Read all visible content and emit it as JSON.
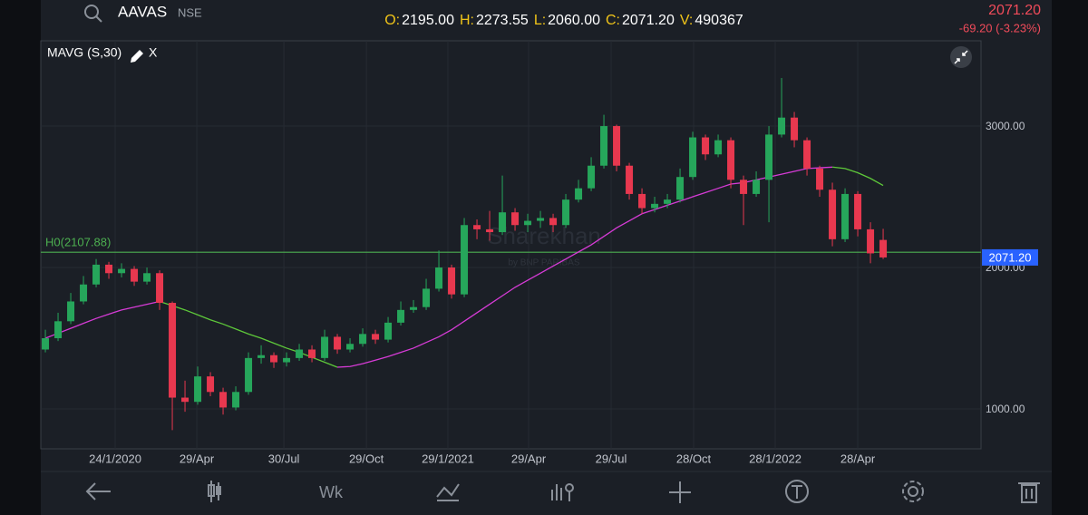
{
  "header": {
    "symbol": "AAVAS",
    "exchange": "NSE",
    "ohlcv": [
      {
        "key": "O:",
        "value": "2195.00"
      },
      {
        "key": "H:",
        "value": "2273.55"
      },
      {
        "key": "L:",
        "value": "2060.00"
      },
      {
        "key": "C:",
        "value": "2071.20"
      },
      {
        "key": "V:",
        "value": "490367"
      }
    ],
    "price": "2071.20",
    "change": "-69.20 (-3.23%)"
  },
  "indicator": {
    "label": "MAVG (S,30)",
    "close": "X"
  },
  "toolbar": {
    "interval": "Wk"
  },
  "chart_data": {
    "type": "candlestick",
    "watermark": [
      "Sharekhan",
      "by BNP PARIBAS"
    ],
    "up_color": "#26a65b",
    "down_color": "#e8384f",
    "opens": [
      1420,
      1500,
      1620,
      1760,
      1880,
      2020,
      1960,
      1990,
      1900,
      1960,
      1750,
      1080,
      1050,
      1230,
      1120,
      1010,
      1120,
      1360,
      1380,
      1330,
      1360,
      1420,
      1360,
      1510,
      1420,
      1460,
      1530,
      1490,
      1610,
      1700,
      1720,
      1850,
      2000,
      1810,
      2300,
      2270,
      2250,
      2390,
      2300,
      2330,
      2350,
      2300,
      2480,
      2560,
      2720,
      3000,
      2720,
      2520,
      2420,
      2450,
      2480,
      2640,
      2920,
      2800,
      2900,
      2620,
      2520,
      2620,
      2940,
      3060,
      2900,
      2700,
      2550,
      2200,
      2520,
      2270,
      2195
    ],
    "highs": [
      1560,
      1680,
      1820,
      1940,
      2060,
      2040,
      2030,
      2010,
      2000,
      1980,
      1760,
      1200,
      1300,
      1260,
      1150,
      1160,
      1400,
      1450,
      1400,
      1400,
      1460,
      1450,
      1560,
      1530,
      1500,
      1570,
      1560,
      1650,
      1760,
      1770,
      1920,
      2120,
      2020,
      2350,
      2340,
      2400,
      2650,
      2420,
      2380,
      2400,
      2380,
      2520,
      2620,
      2780,
      3080,
      3010,
      2740,
      2560,
      2500,
      2520,
      2700,
      2960,
      2940,
      2940,
      2920,
      2650,
      2680,
      3000,
      3340,
      3100,
      2920,
      2720,
      2600,
      2560,
      2540,
      2320,
      2273.55
    ],
    "lows": [
      1400,
      1480,
      1600,
      1740,
      1860,
      1920,
      1930,
      1870,
      1880,
      1700,
      850,
      980,
      1030,
      1090,
      960,
      990,
      1100,
      1320,
      1290,
      1300,
      1340,
      1330,
      1340,
      1390,
      1400,
      1440,
      1460,
      1470,
      1590,
      1680,
      1700,
      1830,
      1780,
      1790,
      2200,
      2190,
      2230,
      2260,
      2250,
      2280,
      2250,
      2280,
      2460,
      2540,
      2700,
      2680,
      2480,
      2380,
      2390,
      2420,
      2460,
      2620,
      2760,
      2780,
      2560,
      2300,
      2500,
      2320,
      2920,
      2850,
      2650,
      2500,
      2150,
      2180,
      2220,
      2030,
      2060
    ],
    "closes": [
      1500,
      1620,
      1760,
      1880,
      2020,
      1960,
      1990,
      1900,
      1960,
      1750,
      1080,
      1050,
      1230,
      1120,
      1010,
      1120,
      1360,
      1380,
      1330,
      1360,
      1420,
      1360,
      1510,
      1420,
      1460,
      1530,
      1490,
      1610,
      1700,
      1720,
      1850,
      2000,
      1810,
      2300,
      2270,
      2250,
      2390,
      2300,
      2330,
      2350,
      2300,
      2480,
      2560,
      2720,
      3000,
      2720,
      2520,
      2420,
      2450,
      2480,
      2640,
      2920,
      2800,
      2900,
      2620,
      2520,
      2620,
      2940,
      3060,
      2900,
      2700,
      2550,
      2200,
      2520,
      2270,
      2100,
      2071.2
    ],
    "ma": {
      "up_color": "#d63bd6",
      "down_color": "#5ec83a",
      "values": [
        1500,
        1535,
        1570,
        1605,
        1640,
        1670,
        1700,
        1720,
        1740,
        1760,
        1730,
        1700,
        1665,
        1630,
        1600,
        1565,
        1530,
        1500,
        1465,
        1430,
        1400,
        1365,
        1330,
        1295,
        1300,
        1320,
        1345,
        1370,
        1400,
        1430,
        1470,
        1510,
        1560,
        1620,
        1680,
        1740,
        1800,
        1860,
        1910,
        1960,
        2010,
        2060,
        2110,
        2160,
        2220,
        2280,
        2330,
        2380,
        2410,
        2440,
        2470,
        2500,
        2530,
        2560,
        2590,
        2600,
        2620,
        2640,
        2660,
        2680,
        2700,
        2705,
        2710,
        2700,
        2670,
        2630,
        2580
      ]
    },
    "hline": {
      "label": "H0(2107.88)",
      "value": 2107.88,
      "color": "#4caf50"
    },
    "last_price": {
      "value": 2071.2,
      "label": "2071.20",
      "color": "#2962ff"
    },
    "xlim": [
      -0.36,
      73.71
    ],
    "xticks": [
      {
        "value": 5.5,
        "label": "24/1/2020"
      },
      {
        "value": 11.93,
        "label": "29/Apr"
      },
      {
        "value": 18.79,
        "label": "30/Jul"
      },
      {
        "value": 25.29,
        "label": "29/Oct"
      },
      {
        "value": 31.71,
        "label": "29/1/2021"
      },
      {
        "value": 38.07,
        "label": "29/Apr"
      },
      {
        "value": 44.57,
        "label": "29/Jul"
      },
      {
        "value": 51.07,
        "label": "28/Oct"
      },
      {
        "value": 57.5,
        "label": "28/1/2022"
      },
      {
        "value": 64,
        "label": "28/Apr"
      }
    ],
    "ylim": [
      718,
      3603
    ],
    "yticks": [
      {
        "value": 1000,
        "label": "1000.00"
      },
      {
        "value": 2000,
        "label": "2000.00"
      },
      {
        "value": 3000,
        "label": "3000.00"
      }
    ],
    "grid": true
  }
}
